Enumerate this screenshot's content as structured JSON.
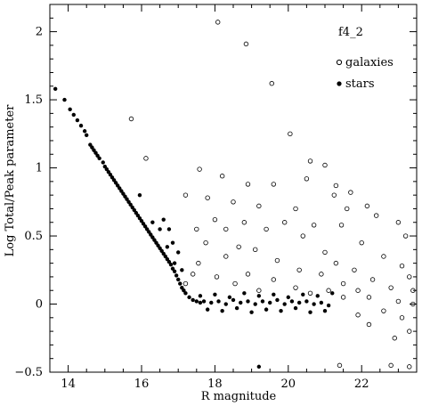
{
  "chart_data": {
    "type": "scatter",
    "xlabel": "R magnitude",
    "ylabel": "Log Total/Peak parameter",
    "panel_label": "f4_2",
    "xlim": [
      13.5,
      23.5
    ],
    "ylim": [
      -0.5,
      2.2
    ],
    "x_ticks": [
      14,
      16,
      18,
      20,
      22
    ],
    "y_ticks": [
      -0.5,
      0,
      0.5,
      1,
      1.5,
      2
    ],
    "x_tick_labels": [
      "14",
      "16",
      "18",
      "20",
      "22"
    ],
    "y_tick_labels": [
      "−0.5",
      "0",
      "0.5",
      "1",
      "1.5",
      "2"
    ],
    "grid": false,
    "legend_position": "top-right",
    "series": [
      {
        "name": "galaxies",
        "marker": "open-circle",
        "color": "#000000",
        "points": [
          [
            18.08,
            2.07
          ],
          [
            18.85,
            1.91
          ],
          [
            19.55,
            1.62
          ],
          [
            15.72,
            1.36
          ],
          [
            20.05,
            1.25
          ],
          [
            16.12,
            1.07
          ],
          [
            20.6,
            1.05
          ],
          [
            21.0,
            1.02
          ],
          [
            17.58,
            0.99
          ],
          [
            20.5,
            0.92
          ],
          [
            18.2,
            0.94
          ],
          [
            18.9,
            0.88
          ],
          [
            19.6,
            0.88
          ],
          [
            21.3,
            0.87
          ],
          [
            17.2,
            0.8
          ],
          [
            17.8,
            0.78
          ],
          [
            18.5,
            0.75
          ],
          [
            21.7,
            0.82
          ],
          [
            21.25,
            0.8
          ],
          [
            19.2,
            0.72
          ],
          [
            20.2,
            0.7
          ],
          [
            22.15,
            0.72
          ],
          [
            18.0,
            0.62
          ],
          [
            18.8,
            0.6
          ],
          [
            19.9,
            0.6
          ],
          [
            17.5,
            0.55
          ],
          [
            18.3,
            0.55
          ],
          [
            19.4,
            0.55
          ],
          [
            20.7,
            0.58
          ],
          [
            21.6,
            0.7
          ],
          [
            22.4,
            0.65
          ],
          [
            17.75,
            0.45
          ],
          [
            18.65,
            0.42
          ],
          [
            19.1,
            0.4
          ],
          [
            20.4,
            0.5
          ],
          [
            21.45,
            0.58
          ],
          [
            23.0,
            0.6
          ],
          [
            17.55,
            0.3
          ],
          [
            18.3,
            0.35
          ],
          [
            19.7,
            0.32
          ],
          [
            21.0,
            0.38
          ],
          [
            22.0,
            0.45
          ],
          [
            23.2,
            0.5
          ],
          [
            17.4,
            0.22
          ],
          [
            18.05,
            0.2
          ],
          [
            18.9,
            0.22
          ],
          [
            20.3,
            0.25
          ],
          [
            21.3,
            0.3
          ],
          [
            22.6,
            0.35
          ],
          [
            17.2,
            0.15
          ],
          [
            18.55,
            0.15
          ],
          [
            19.6,
            0.18
          ],
          [
            20.9,
            0.22
          ],
          [
            21.8,
            0.25
          ],
          [
            23.1,
            0.28
          ],
          [
            19.2,
            0.1
          ],
          [
            20.2,
            0.12
          ],
          [
            21.5,
            0.15
          ],
          [
            22.3,
            0.18
          ],
          [
            23.3,
            0.2
          ],
          [
            20.6,
            0.08
          ],
          [
            21.1,
            0.1
          ],
          [
            21.9,
            0.1
          ],
          [
            22.8,
            0.12
          ],
          [
            23.4,
            0.1
          ],
          [
            21.5,
            0.05
          ],
          [
            22.2,
            0.05
          ],
          [
            23.0,
            0.02
          ],
          [
            23.4,
            0.0
          ],
          [
            22.6,
            -0.05
          ],
          [
            21.9,
            -0.08
          ],
          [
            23.1,
            -0.1
          ],
          [
            22.2,
            -0.15
          ],
          [
            23.3,
            -0.2
          ],
          [
            22.9,
            -0.25
          ],
          [
            21.4,
            -0.45
          ],
          [
            22.8,
            -0.45
          ],
          [
            23.3,
            -0.46
          ]
        ]
      },
      {
        "name": "stars",
        "marker": "filled-circle",
        "color": "#000000",
        "points": [
          [
            13.65,
            1.58
          ],
          [
            13.9,
            1.5
          ],
          [
            14.05,
            1.43
          ],
          [
            14.15,
            1.39
          ],
          [
            14.25,
            1.35
          ],
          [
            14.35,
            1.31
          ],
          [
            14.45,
            1.27
          ],
          [
            14.5,
            1.24
          ],
          [
            14.6,
            1.17
          ],
          [
            14.65,
            1.15
          ],
          [
            14.7,
            1.13
          ],
          [
            14.75,
            1.11
          ],
          [
            14.8,
            1.09
          ],
          [
            14.85,
            1.07
          ],
          [
            14.95,
            1.04
          ],
          [
            15.0,
            1.01
          ],
          [
            15.05,
            0.99
          ],
          [
            15.1,
            0.97
          ],
          [
            15.15,
            0.95
          ],
          [
            15.2,
            0.93
          ],
          [
            15.25,
            0.91
          ],
          [
            15.3,
            0.89
          ],
          [
            15.35,
            0.87
          ],
          [
            15.4,
            0.85
          ],
          [
            15.45,
            0.83
          ],
          [
            15.5,
            0.81
          ],
          [
            15.55,
            0.79
          ],
          [
            15.6,
            0.77
          ],
          [
            15.65,
            0.75
          ],
          [
            15.7,
            0.73
          ],
          [
            15.75,
            0.71
          ],
          [
            15.8,
            0.69
          ],
          [
            15.85,
            0.67
          ],
          [
            15.9,
            0.65
          ],
          [
            15.95,
            0.63
          ],
          [
            16.0,
            0.61
          ],
          [
            16.05,
            0.59
          ],
          [
            16.1,
            0.57
          ],
          [
            16.15,
            0.55
          ],
          [
            16.2,
            0.53
          ],
          [
            16.25,
            0.51
          ],
          [
            16.3,
            0.49
          ],
          [
            16.35,
            0.47
          ],
          [
            16.4,
            0.45
          ],
          [
            16.45,
            0.43
          ],
          [
            16.5,
            0.41
          ],
          [
            16.55,
            0.39
          ],
          [
            16.6,
            0.37
          ],
          [
            16.65,
            0.35
          ],
          [
            16.7,
            0.33
          ],
          [
            16.75,
            0.31
          ],
          [
            16.8,
            0.29
          ],
          [
            16.85,
            0.26
          ],
          [
            16.9,
            0.24
          ],
          [
            16.95,
            0.21
          ],
          [
            17.0,
            0.18
          ],
          [
            17.05,
            0.15
          ],
          [
            17.1,
            0.12
          ],
          [
            17.15,
            0.1
          ],
          [
            17.2,
            0.08
          ],
          [
            17.3,
            0.05
          ],
          [
            17.4,
            0.03
          ],
          [
            17.5,
            0.02
          ],
          [
            17.6,
            0.01
          ],
          [
            16.6,
            0.62
          ],
          [
            16.75,
            0.55
          ],
          [
            16.85,
            0.45
          ],
          [
            17.0,
            0.38
          ],
          [
            16.5,
            0.55
          ],
          [
            16.9,
            0.3
          ],
          [
            17.1,
            0.25
          ],
          [
            16.7,
            0.42
          ],
          [
            15.95,
            0.8
          ],
          [
            16.3,
            0.6
          ],
          [
            17.7,
            0.02
          ],
          [
            17.9,
            0.01
          ],
          [
            18.1,
            0.02
          ],
          [
            18.3,
            0.0
          ],
          [
            18.5,
            0.03
          ],
          [
            18.7,
            0.01
          ],
          [
            18.9,
            0.02
          ],
          [
            19.1,
            0.0
          ],
          [
            19.3,
            0.02
          ],
          [
            19.5,
            0.01
          ],
          [
            19.7,
            0.03
          ],
          [
            19.9,
            0.0
          ],
          [
            20.1,
            0.02
          ],
          [
            20.3,
            0.01
          ],
          [
            20.5,
            0.02
          ],
          [
            20.7,
            0.0
          ],
          [
            20.9,
            0.01
          ],
          [
            21.1,
            -0.01
          ],
          [
            17.8,
            -0.04
          ],
          [
            18.2,
            -0.05
          ],
          [
            18.6,
            -0.03
          ],
          [
            19.0,
            -0.06
          ],
          [
            19.4,
            -0.04
          ],
          [
            19.8,
            -0.05
          ],
          [
            20.2,
            -0.03
          ],
          [
            20.6,
            -0.06
          ],
          [
            21.0,
            -0.05
          ],
          [
            17.6,
            0.06
          ],
          [
            18.0,
            0.07
          ],
          [
            18.4,
            0.05
          ],
          [
            18.8,
            0.08
          ],
          [
            19.2,
            0.06
          ],
          [
            19.6,
            0.07
          ],
          [
            20.0,
            0.05
          ],
          [
            20.4,
            0.07
          ],
          [
            20.8,
            0.06
          ],
          [
            21.2,
            0.08
          ],
          [
            19.2,
            -0.46
          ]
        ]
      }
    ]
  }
}
